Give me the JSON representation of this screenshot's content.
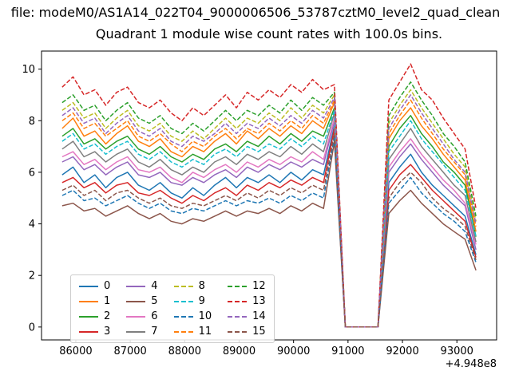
{
  "chart_data": {
    "type": "line",
    "suptitle": "file: modeM0/AS1A14_022T04_9000006506_53787cztM0_level2_quad_clean",
    "title": "Quadrant 1 module wise count rates with 100.0s bins.",
    "xlabel": "",
    "ylabel": "",
    "x_offset_label": "+4.948e8",
    "xlim": [
      85370,
      93730
    ],
    "ylim": [
      -0.5,
      10.7
    ],
    "xticks": [
      "86000",
      "87000",
      "88000",
      "89000",
      "90000",
      "91000",
      "92000",
      "93000"
    ],
    "xtick_values": [
      86000,
      87000,
      88000,
      89000,
      90000,
      91000,
      92000,
      93000
    ],
    "yticks": [
      "0",
      "2",
      "4",
      "6",
      "8",
      "10"
    ],
    "ytick_values": [
      0,
      2,
      4,
      6,
      8,
      10
    ],
    "grid": false,
    "legend": {
      "location": "lower left",
      "ncol": 4
    },
    "x": [
      85750,
      85950,
      86150,
      86350,
      86550,
      86750,
      86950,
      87150,
      87350,
      87550,
      87750,
      87950,
      88150,
      88350,
      88550,
      88750,
      88950,
      89150,
      89350,
      89550,
      89750,
      89950,
      90150,
      90350,
      90550,
      90750,
      90950,
      91150,
      91350,
      91550,
      91750,
      91950,
      92150,
      92350,
      92550,
      92750,
      92950,
      93150,
      93350
    ],
    "series": [
      {
        "name": "0",
        "color": "#1f77b4",
        "style": "solid",
        "values": [
          5.9,
          6.2,
          5.6,
          5.9,
          5.4,
          5.8,
          6.0,
          5.5,
          5.3,
          5.6,
          5.2,
          5.0,
          5.4,
          5.1,
          5.5,
          5.8,
          5.4,
          5.8,
          5.6,
          5.9,
          5.6,
          6.0,
          5.7,
          6.1,
          5.9,
          7.8,
          0,
          0,
          0,
          0,
          5.6,
          6.2,
          6.7,
          6.0,
          5.5,
          5.1,
          4.7,
          4.3,
          2.8
        ]
      },
      {
        "name": "1",
        "color": "#ff7f0e",
        "style": "solid",
        "values": [
          7.7,
          8.1,
          7.4,
          7.6,
          7.1,
          7.5,
          7.8,
          7.2,
          7.0,
          7.3,
          6.8,
          6.6,
          7.0,
          6.8,
          7.2,
          7.5,
          7.1,
          7.6,
          7.3,
          7.7,
          7.4,
          7.8,
          7.5,
          8.0,
          7.7,
          8.7,
          0,
          0,
          0,
          0,
          7.3,
          8.0,
          8.5,
          7.8,
          7.3,
          6.7,
          6.2,
          5.7,
          3.7
        ]
      },
      {
        "name": "2",
        "color": "#2ca02c",
        "style": "solid",
        "values": [
          7.4,
          7.7,
          7.1,
          7.3,
          6.9,
          7.2,
          7.4,
          6.9,
          6.7,
          7.0,
          6.6,
          6.4,
          6.7,
          6.5,
          6.9,
          7.1,
          6.8,
          7.2,
          7.0,
          7.4,
          7.1,
          7.5,
          7.2,
          7.6,
          7.4,
          8.5,
          0,
          0,
          0,
          0,
          7.0,
          7.7,
          8.2,
          7.5,
          7.0,
          6.4,
          6.0,
          5.5,
          3.5
        ]
      },
      {
        "name": "3",
        "color": "#d62728",
        "style": "solid",
        "values": [
          5.6,
          5.8,
          5.4,
          5.6,
          5.2,
          5.5,
          5.6,
          5.2,
          5.1,
          5.3,
          5.0,
          4.8,
          5.1,
          4.9,
          5.2,
          5.4,
          5.1,
          5.5,
          5.3,
          5.6,
          5.4,
          5.7,
          5.5,
          5.8,
          5.6,
          7.7,
          0,
          0,
          0,
          0,
          5.3,
          5.9,
          6.3,
          5.8,
          5.3,
          4.9,
          4.5,
          4.1,
          2.7
        ]
      },
      {
        "name": "4",
        "color": "#9467bd",
        "style": "solid",
        "values": [
          6.4,
          6.6,
          6.1,
          6.3,
          5.9,
          6.2,
          6.4,
          5.9,
          5.8,
          6.0,
          5.6,
          5.5,
          5.8,
          5.6,
          5.9,
          6.1,
          5.8,
          6.2,
          6.0,
          6.3,
          6.1,
          6.4,
          6.2,
          6.5,
          6.3,
          8.0,
          0,
          0,
          0,
          0,
          6.0,
          6.6,
          7.1,
          6.5,
          6.0,
          5.5,
          5.1,
          4.7,
          3.0
        ]
      },
      {
        "name": "5",
        "color": "#8c564b",
        "style": "solid",
        "values": [
          4.7,
          4.8,
          4.5,
          4.6,
          4.3,
          4.5,
          4.7,
          4.4,
          4.2,
          4.4,
          4.1,
          4.0,
          4.2,
          4.1,
          4.3,
          4.5,
          4.3,
          4.5,
          4.4,
          4.6,
          4.4,
          4.7,
          4.5,
          4.8,
          4.6,
          7.2,
          0,
          0,
          0,
          0,
          4.4,
          4.9,
          5.3,
          4.8,
          4.4,
          4.0,
          3.7,
          3.4,
          2.2
        ]
      },
      {
        "name": "6",
        "color": "#e377c2",
        "style": "solid",
        "values": [
          6.6,
          6.8,
          6.3,
          6.5,
          6.1,
          6.4,
          6.6,
          6.1,
          6.0,
          6.2,
          5.8,
          5.6,
          6.0,
          5.8,
          6.1,
          6.3,
          6.0,
          6.4,
          6.2,
          6.5,
          6.3,
          6.6,
          6.4,
          6.8,
          6.5,
          8.1,
          0,
          0,
          0,
          0,
          6.2,
          6.8,
          7.3,
          6.7,
          6.2,
          5.7,
          5.3,
          4.8,
          3.2
        ]
      },
      {
        "name": "7",
        "color": "#7f7f7f",
        "style": "solid",
        "values": [
          6.9,
          7.2,
          6.6,
          6.8,
          6.4,
          6.7,
          6.9,
          6.4,
          6.2,
          6.5,
          6.1,
          5.9,
          6.2,
          6.0,
          6.4,
          6.6,
          6.3,
          6.7,
          6.5,
          6.8,
          6.6,
          7.0,
          6.7,
          7.1,
          6.8,
          8.3,
          0,
          0,
          0,
          0,
          6.5,
          7.1,
          7.7,
          7.0,
          6.5,
          6.0,
          5.5,
          5.1,
          3.3
        ]
      },
      {
        "name": "8",
        "color": "#bcbd22",
        "style": "dashed",
        "values": [
          8.4,
          8.7,
          8.1,
          8.3,
          7.7,
          8.1,
          8.4,
          7.8,
          7.6,
          7.9,
          7.4,
          7.2,
          7.6,
          7.3,
          7.7,
          8.1,
          7.7,
          8.1,
          7.9,
          8.3,
          8.0,
          8.5,
          8.1,
          8.6,
          8.3,
          9.0,
          0,
          0,
          0,
          0,
          7.9,
          8.6,
          9.2,
          8.5,
          7.9,
          7.3,
          6.7,
          6.2,
          4.1
        ]
      },
      {
        "name": "9",
        "color": "#17becf",
        "style": "dashed",
        "values": [
          7.2,
          7.5,
          6.9,
          7.1,
          6.7,
          7.0,
          7.2,
          6.7,
          6.5,
          6.8,
          6.4,
          6.2,
          6.5,
          6.3,
          6.7,
          6.9,
          6.6,
          7.0,
          6.8,
          7.1,
          6.9,
          7.3,
          7.0,
          7.4,
          7.1,
          8.4,
          0,
          0,
          0,
          0,
          6.8,
          7.4,
          8.0,
          7.3,
          6.8,
          6.3,
          5.8,
          5.3,
          3.5
        ]
      },
      {
        "name": "10",
        "color": "#1f77b4",
        "style": "dashed",
        "values": [
          5.1,
          5.3,
          4.9,
          5.0,
          4.7,
          4.9,
          5.1,
          4.8,
          4.6,
          4.8,
          4.5,
          4.4,
          4.6,
          4.5,
          4.7,
          4.9,
          4.7,
          4.9,
          4.8,
          5.0,
          4.8,
          5.1,
          4.9,
          5.2,
          5.0,
          7.4,
          0,
          0,
          0,
          0,
          4.8,
          5.3,
          5.8,
          5.2,
          4.8,
          4.4,
          4.1,
          3.7,
          2.5
        ]
      },
      {
        "name": "11",
        "color": "#ff7f0e",
        "style": "dashed",
        "values": [
          8.0,
          8.3,
          7.7,
          7.9,
          7.4,
          7.7,
          8.0,
          7.4,
          7.2,
          7.5,
          7.1,
          6.8,
          7.2,
          7.0,
          7.4,
          7.7,
          7.3,
          7.7,
          7.5,
          7.9,
          7.6,
          8.0,
          7.7,
          8.2,
          7.9,
          8.8,
          0,
          0,
          0,
          0,
          7.5,
          8.2,
          8.8,
          8.1,
          7.5,
          6.9,
          6.4,
          5.9,
          3.9
        ]
      },
      {
        "name": "12",
        "color": "#2ca02c",
        "style": "dashed",
        "values": [
          8.7,
          9.0,
          8.4,
          8.6,
          8.0,
          8.4,
          8.7,
          8.1,
          7.9,
          8.2,
          7.7,
          7.5,
          7.9,
          7.6,
          8.0,
          8.4,
          8.0,
          8.4,
          8.2,
          8.6,
          8.3,
          8.8,
          8.4,
          8.9,
          8.6,
          9.1,
          0,
          0,
          0,
          0,
          8.2,
          8.9,
          9.5,
          8.8,
          8.2,
          7.5,
          7.0,
          6.4,
          4.3
        ]
      },
      {
        "name": "13",
        "color": "#d62728",
        "style": "dashed",
        "values": [
          9.3,
          9.7,
          9.0,
          9.2,
          8.6,
          9.1,
          9.3,
          8.7,
          8.5,
          8.8,
          8.3,
          8.0,
          8.5,
          8.2,
          8.6,
          9.0,
          8.5,
          9.1,
          8.8,
          9.2,
          8.9,
          9.4,
          9.1,
          9.6,
          9.2,
          9.4,
          0,
          0,
          0,
          0,
          8.8,
          9.5,
          10.2,
          9.2,
          8.8,
          8.1,
          7.5,
          6.9,
          4.6
        ]
      },
      {
        "name": "14",
        "color": "#9467bd",
        "style": "dashed",
        "values": [
          8.2,
          8.5,
          7.9,
          8.1,
          7.5,
          7.9,
          8.2,
          7.6,
          7.4,
          7.7,
          7.2,
          7.0,
          7.4,
          7.2,
          7.5,
          7.9,
          7.5,
          7.9,
          7.7,
          8.1,
          7.8,
          8.2,
          7.9,
          8.4,
          8.1,
          8.9,
          0,
          0,
          0,
          0,
          7.7,
          8.4,
          9.0,
          8.3,
          7.7,
          7.1,
          6.5,
          6.0,
          4.0
        ]
      },
      {
        "name": "15",
        "color": "#8c564b",
        "style": "dashed",
        "values": [
          5.3,
          5.5,
          5.1,
          5.3,
          4.9,
          5.2,
          5.3,
          5.0,
          4.8,
          5.0,
          4.7,
          4.6,
          4.8,
          4.7,
          4.9,
          5.1,
          4.9,
          5.2,
          5.0,
          5.3,
          5.1,
          5.4,
          5.2,
          5.5,
          5.3,
          7.5,
          0,
          0,
          0,
          0,
          5.0,
          5.6,
          6.0,
          5.6,
          5.0,
          4.6,
          4.3,
          3.9,
          2.6
        ]
      }
    ]
  }
}
